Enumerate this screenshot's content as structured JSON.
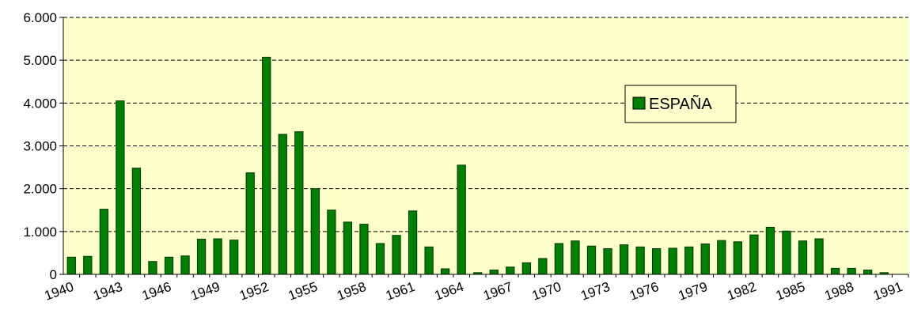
{
  "chart_data": {
    "type": "bar",
    "categories": [
      "1940",
      null,
      null,
      "1943",
      null,
      null,
      "1946",
      null,
      null,
      "1949",
      null,
      null,
      "1952",
      null,
      null,
      "1955",
      null,
      null,
      "1958",
      null,
      null,
      "1961",
      null,
      null,
      "1964",
      null,
      null,
      "1967",
      null,
      null,
      "1970",
      null,
      null,
      "1973",
      null,
      null,
      "1976",
      null,
      null,
      "1979",
      null,
      null,
      "1982",
      null,
      null,
      "1985",
      null,
      null,
      "1988",
      null,
      null,
      "1991"
    ],
    "series": [
      {
        "name": "ESPAÑA",
        "color": "#008000",
        "values": [
          400,
          420,
          1520,
          4050,
          2480,
          300,
          400,
          430,
          820,
          830,
          800,
          2370,
          5070,
          3270,
          3330,
          2000,
          1500,
          1220,
          1170,
          720,
          910,
          1480,
          640,
          130,
          2550,
          40,
          100,
          170,
          270,
          370,
          720,
          780,
          660,
          600,
          690,
          640,
          600,
          610,
          640,
          710,
          790,
          760,
          920,
          1100,
          1010,
          780,
          830,
          140,
          140,
          100,
          40,
          0
        ]
      }
    ],
    "ylim": [
      0,
      6000
    ],
    "yticks": [
      0,
      {
        "value": 1000,
        "label": "1.000"
      },
      {
        "value": 2000,
        "label": "2.000"
      },
      {
        "value": 3000,
        "label": "3.000"
      },
      {
        "value": 4000,
        "label": "4.000"
      },
      {
        "value": 5000,
        "label": "5.000"
      },
      {
        "value": 6000,
        "label": "6.000"
      }
    ],
    "grid": true,
    "background": "#ffffcc"
  }
}
